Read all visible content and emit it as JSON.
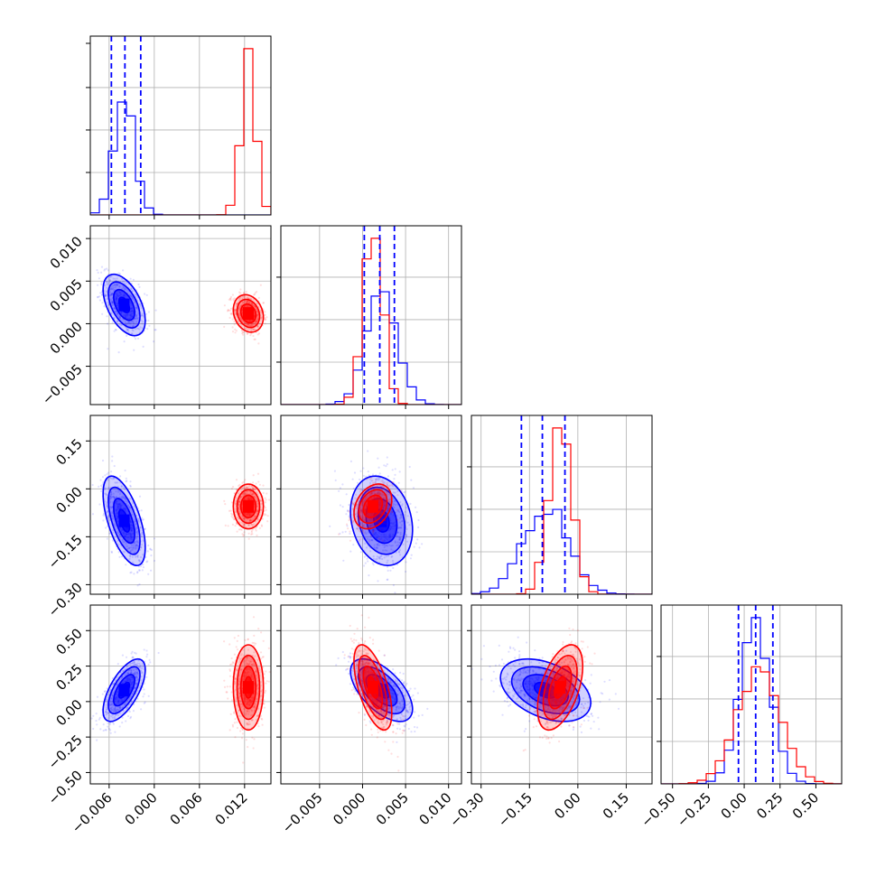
{
  "chart_data": {
    "type": "corner",
    "n_params": 4,
    "grid": true,
    "colors": {
      "series_a": "#0000ff",
      "series_b": "#ff0000",
      "quantile_lines": "#0000ff"
    },
    "series": [
      {
        "color": "#0000ff",
        "style": "histogram-step + density-contours + scatter"
      },
      {
        "color": "#ff0000",
        "style": "histogram-step + density-contours + scatter"
      }
    ],
    "params": [
      {
        "range": [
          -0.0085,
          0.0155
        ],
        "ticks": [
          -0.006,
          0.0,
          0.006,
          0.012
        ],
        "tick_labels": [
          "−0.006",
          "0.000",
          "0.006",
          "0.012"
        ],
        "blue": {
          "mean": -0.004,
          "std": 0.0014
        },
        "red": {
          "mean": 0.0125,
          "std": 0.001
        },
        "quantiles": [
          -0.0057,
          -0.0039,
          -0.0018
        ],
        "hist_max": 1.0
      },
      {
        "range": [
          -0.0095,
          0.0115
        ],
        "ticks": [
          -0.005,
          0.0,
          0.005,
          0.01
        ],
        "tick_labels": [
          "−0.005",
          "0.000",
          "0.005",
          "0.010"
        ],
        "blue": {
          "mean": 0.0022,
          "std": 0.0018
        },
        "red": {
          "mean": 0.0012,
          "std": 0.0011
        },
        "quantiles": [
          0.0002,
          0.002,
          0.0037
        ],
        "hist_max": 1.0
      },
      {
        "range": [
          -0.33,
          0.23
        ],
        "ticks": [
          -0.3,
          -0.15,
          0.0,
          0.15
        ],
        "tick_labels": [
          "−0.30",
          "−0.15",
          "0.00",
          "0.15"
        ],
        "blue": {
          "mean": -0.1,
          "std": 0.07
        },
        "red": {
          "mean": -0.055,
          "std": 0.035
        },
        "quantiles": [
          -0.175,
          -0.11,
          -0.04
        ],
        "hist_max": 1.0
      },
      {
        "range": [
          -0.58,
          0.68
        ],
        "ticks": [
          -0.5,
          -0.25,
          0.0,
          0.25,
          0.5
        ],
        "tick_labels": [
          "−0.50",
          "−0.25",
          "0.00",
          "0.25",
          "0.50"
        ],
        "blue": {
          "mean": 0.08,
          "std": 0.11
        },
        "red": {
          "mean": 0.1,
          "std": 0.15
        },
        "quantiles": [
          -0.04,
          0.08,
          0.2
        ],
        "hist_max": 1.0
      }
    ],
    "correlations": {
      "blue": {
        "0-1": -0.5,
        "0-2": -0.6,
        "0-3": 0.65,
        "1-2": -0.2,
        "1-3": -0.6,
        "2-3": -0.4
      },
      "red": {
        "0-1": -0.2,
        "0-2": 0.0,
        "0-3": 0.0,
        "1-2": 0.3,
        "1-3": -0.6,
        "2-3": 0.5
      }
    }
  }
}
